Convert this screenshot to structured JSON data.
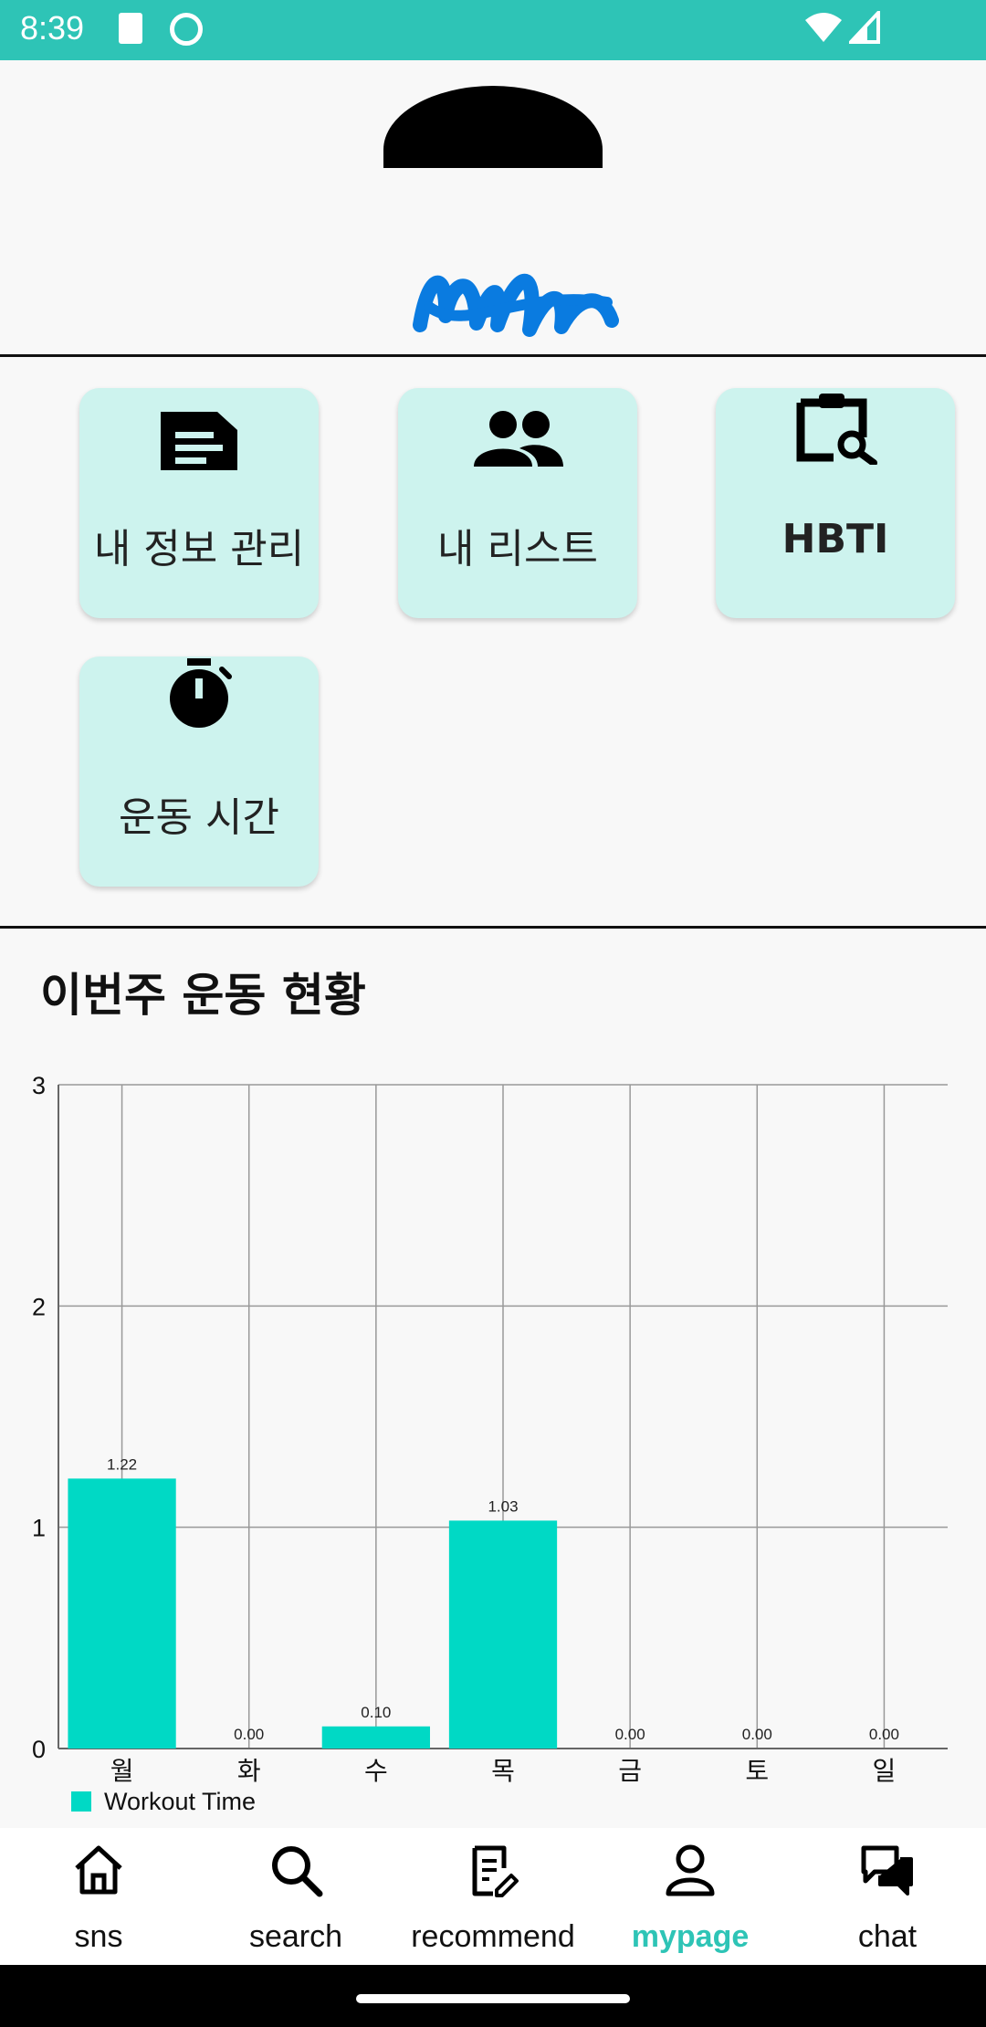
{
  "status": {
    "time": "8:39"
  },
  "menu": {
    "items": [
      {
        "label": "내 정보 관리",
        "icon": "document-icon"
      },
      {
        "label": "내 리스트",
        "icon": "people-icon"
      },
      {
        "label": "HBTI",
        "icon": "clipboard-search-icon"
      },
      {
        "label": "운동 시간",
        "icon": "stopwatch-icon"
      }
    ]
  },
  "section": {
    "title": "이번주 운동 현황"
  },
  "chart_data": {
    "type": "bar",
    "categories": [
      "월",
      "화",
      "수",
      "목",
      "금",
      "토",
      "일"
    ],
    "series": [
      {
        "name": "Workout Time",
        "values": [
          1.22,
          0.0,
          0.1,
          1.03,
          0.0,
          0.0,
          0.0
        ],
        "color": "#00d9c5"
      }
    ],
    "value_labels": [
      "1.22",
      "0.00",
      "0.10",
      "1.03",
      "0.00",
      "0.00",
      "0.00"
    ],
    "yticks": [
      "0",
      "1",
      "2",
      "3"
    ],
    "ylim": [
      0,
      3
    ],
    "grid": true,
    "legend": "bottom-left"
  },
  "nav": {
    "items": [
      {
        "label": "sns",
        "icon": "home-icon",
        "active": false
      },
      {
        "label": "search",
        "icon": "search-icon",
        "active": false
      },
      {
        "label": "recommend",
        "icon": "notepad-pen-icon",
        "active": false
      },
      {
        "label": "mypage",
        "icon": "person-icon",
        "active": true
      },
      {
        "label": "chat",
        "icon": "chat-bubbles-icon",
        "active": false
      }
    ]
  },
  "colors": {
    "accent": "#2ec4b6",
    "card": "#cdf3ee",
    "bar": "#00d9c5"
  }
}
